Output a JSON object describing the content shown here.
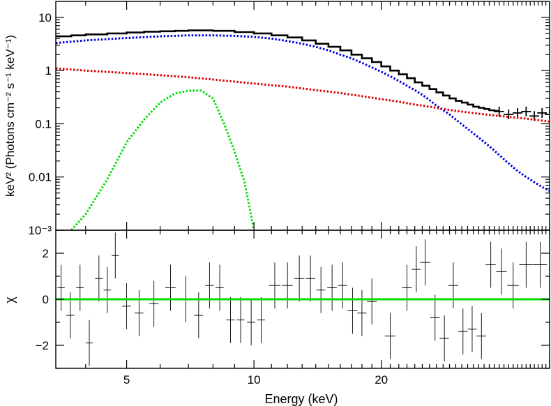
{
  "chart_data": [
    {
      "type": "line",
      "panel": "spectrum",
      "ylabel": "keV² (Photons cm⁻² s⁻¹ keV⁻¹)",
      "x_scale": "log",
      "y_scale": "log",
      "xlim": [
        3.4,
        50
      ],
      "ylim": [
        0.001,
        20
      ],
      "ytick_labels": [
        "10",
        "1",
        "0.1",
        "0.01",
        "10⁻³"
      ],
      "ytick_values": [
        10,
        1,
        0.1,
        0.01,
        0.001
      ],
      "colors": {
        "data": "#000000",
        "total": "#000000",
        "component_blue": "#0000dd",
        "component_red": "#dd0000",
        "component_green": "#00dd00"
      },
      "series": [
        {
          "style": "data-crosses",
          "color": "#000000",
          "x": [
            38,
            40,
            42,
            44,
            46,
            48,
            50
          ],
          "y": [
            0.17,
            0.15,
            0.16,
            0.17,
            0.14,
            0.16,
            0.15
          ]
        },
        {
          "style": "step",
          "color": "#000000",
          "x": [
            3.4,
            3.7,
            4.0,
            4.5,
            5.0,
            5.5,
            6.0,
            6.5,
            7.0,
            7.5,
            8.0,
            9.0,
            10,
            11,
            12,
            13,
            14,
            15,
            16,
            17,
            18,
            19,
            20,
            21,
            22,
            23,
            24,
            25,
            26,
            27,
            28,
            29,
            30,
            31,
            32,
            33,
            34,
            35,
            36,
            37,
            38
          ],
          "y": [
            4.4,
            4.6,
            4.8,
            5.0,
            5.2,
            5.4,
            5.5,
            5.6,
            5.7,
            5.7,
            5.6,
            5.3,
            5.0,
            4.6,
            4.2,
            3.7,
            3.2,
            2.8,
            2.4,
            2.0,
            1.7,
            1.45,
            1.2,
            1.0,
            0.85,
            0.72,
            0.6,
            0.52,
            0.45,
            0.39,
            0.34,
            0.3,
            0.27,
            0.25,
            0.23,
            0.21,
            0.2,
            0.19,
            0.18,
            0.175,
            0.17
          ]
        },
        {
          "style": "dotted",
          "color": "#0000dd",
          "x": [
            3.4,
            4.0,
            5.0,
            6.0,
            7.0,
            8.0,
            9.0,
            10,
            11,
            12,
            13,
            14,
            15,
            16,
            17,
            18,
            19,
            20,
            21,
            22,
            23,
            24,
            25,
            26,
            27,
            28,
            29,
            30,
            32,
            34,
            36,
            38,
            40,
            42,
            44,
            46,
            48,
            50
          ],
          "y": [
            3.3,
            3.7,
            4.1,
            4.4,
            4.6,
            4.6,
            4.5,
            4.3,
            4.0,
            3.6,
            3.2,
            2.8,
            2.4,
            2.0,
            1.7,
            1.4,
            1.15,
            0.95,
            0.78,
            0.64,
            0.52,
            0.43,
            0.35,
            0.28,
            0.22,
            0.18,
            0.15,
            0.12,
            0.08,
            0.055,
            0.038,
            0.026,
            0.018,
            0.013,
            0.01,
            0.008,
            0.0065,
            0.0055
          ]
        },
        {
          "style": "dotted",
          "color": "#dd0000",
          "x": [
            3.4,
            4.0,
            5.0,
            6.0,
            7.0,
            8.0,
            9.0,
            10,
            12,
            14,
            16,
            18,
            20,
            22,
            24,
            26,
            28,
            30,
            34,
            38,
            42,
            46,
            50
          ],
          "y": [
            1.1,
            1.0,
            0.9,
            0.82,
            0.75,
            0.68,
            0.62,
            0.57,
            0.5,
            0.43,
            0.38,
            0.33,
            0.29,
            0.26,
            0.23,
            0.21,
            0.19,
            0.175,
            0.155,
            0.14,
            0.13,
            0.12,
            0.11
          ]
        },
        {
          "style": "dotted",
          "color": "#00dd00",
          "x": [
            3.7,
            4.0,
            4.5,
            5.0,
            5.5,
            6.0,
            6.5,
            7.0,
            7.5,
            8.0,
            8.5,
            9.0,
            9.5,
            10
          ],
          "y": [
            0.001,
            0.002,
            0.009,
            0.045,
            0.12,
            0.25,
            0.37,
            0.42,
            0.42,
            0.3,
            0.1,
            0.03,
            0.008,
            0.001
          ]
        }
      ]
    },
    {
      "type": "scatter",
      "panel": "residuals",
      "xlabel": "Energy (keV)",
      "ylabel": "χ",
      "x_scale": "log",
      "xlim": [
        3.4,
        50
      ],
      "ylim": [
        -3,
        3
      ],
      "xtick_labels": [
        "5",
        "10",
        "20"
      ],
      "xtick_values": [
        5,
        10,
        20
      ],
      "ytick_labels": [
        "2",
        "0",
        "−2"
      ],
      "ytick_values": [
        2,
        0,
        -2
      ],
      "zero_line_color": "#00dd00",
      "points": [
        {
          "x": 3.5,
          "y": 0.5,
          "xerr": 0.07,
          "yerr": 1.0
        },
        {
          "x": 3.68,
          "y": -0.7,
          "xerr": 0.08,
          "yerr": 1.0
        },
        {
          "x": 3.88,
          "y": 0.5,
          "xerr": 0.08,
          "yerr": 1.0
        },
        {
          "x": 4.08,
          "y": -1.9,
          "xerr": 0.08,
          "yerr": 1.0
        },
        {
          "x": 4.3,
          "y": 0.9,
          "xerr": 0.09,
          "yerr": 1.0
        },
        {
          "x": 4.5,
          "y": 0.4,
          "xerr": 0.09,
          "yerr": 1.0
        },
        {
          "x": 4.7,
          "y": 1.9,
          "xerr": 0.09,
          "yerr": 1.0
        },
        {
          "x": 5.0,
          "y": -0.3,
          "xerr": 0.12,
          "yerr": 1.0
        },
        {
          "x": 5.35,
          "y": -0.6,
          "xerr": 0.13,
          "yerr": 1.0
        },
        {
          "x": 5.8,
          "y": -0.2,
          "xerr": 0.15,
          "yerr": 1.0
        },
        {
          "x": 6.35,
          "y": 0.5,
          "xerr": 0.18,
          "yerr": 1.0
        },
        {
          "x": 6.9,
          "y": 0.0,
          "xerr": 0.18,
          "yerr": 1.0
        },
        {
          "x": 7.4,
          "y": -0.7,
          "xerr": 0.18,
          "yerr": 1.0
        },
        {
          "x": 7.85,
          "y": 0.6,
          "xerr": 0.18,
          "yerr": 1.0
        },
        {
          "x": 8.3,
          "y": 0.5,
          "xerr": 0.18,
          "yerr": 1.0
        },
        {
          "x": 8.8,
          "y": -0.9,
          "xerr": 0.2,
          "yerr": 1.0
        },
        {
          "x": 9.3,
          "y": -0.9,
          "xerr": 0.2,
          "yerr": 1.0
        },
        {
          "x": 9.85,
          "y": -1.0,
          "xerr": 0.22,
          "yerr": 1.0
        },
        {
          "x": 10.4,
          "y": -0.9,
          "xerr": 0.22,
          "yerr": 1.0
        },
        {
          "x": 11.2,
          "y": 0.6,
          "xerr": 0.35,
          "yerr": 1.0
        },
        {
          "x": 12.0,
          "y": 0.6,
          "xerr": 0.35,
          "yerr": 1.0
        },
        {
          "x": 12.8,
          "y": 0.9,
          "xerr": 0.35,
          "yerr": 1.0
        },
        {
          "x": 13.6,
          "y": 0.9,
          "xerr": 0.35,
          "yerr": 1.0
        },
        {
          "x": 14.4,
          "y": 0.4,
          "xerr": 0.35,
          "yerr": 1.0
        },
        {
          "x": 15.3,
          "y": 0.5,
          "xerr": 0.4,
          "yerr": 1.0
        },
        {
          "x": 16.2,
          "y": 0.6,
          "xerr": 0.4,
          "yerr": 1.0
        },
        {
          "x": 17.1,
          "y": -0.5,
          "xerr": 0.45,
          "yerr": 1.0
        },
        {
          "x": 18.0,
          "y": -0.6,
          "xerr": 0.45,
          "yerr": 1.0
        },
        {
          "x": 19.0,
          "y": -0.1,
          "xerr": 0.5,
          "yerr": 1.0
        },
        {
          "x": 21.0,
          "y": -1.6,
          "xerr": 0.6,
          "yerr": 1.0
        },
        {
          "x": 23.0,
          "y": 0.5,
          "xerr": 0.6,
          "yerr": 1.0
        },
        {
          "x": 24.2,
          "y": 1.3,
          "xerr": 0.6,
          "yerr": 1.0
        },
        {
          "x": 25.4,
          "y": 1.6,
          "xerr": 0.7,
          "yerr": 1.0
        },
        {
          "x": 26.8,
          "y": -0.8,
          "xerr": 0.7,
          "yerr": 1.0
        },
        {
          "x": 28.2,
          "y": -1.7,
          "xerr": 0.7,
          "yerr": 1.0
        },
        {
          "x": 29.6,
          "y": 0.6,
          "xerr": 0.8,
          "yerr": 1.0
        },
        {
          "x": 31.2,
          "y": -1.4,
          "xerr": 0.8,
          "yerr": 1.0
        },
        {
          "x": 32.8,
          "y": -1.3,
          "xerr": 0.8,
          "yerr": 1.0
        },
        {
          "x": 34.5,
          "y": -1.6,
          "xerr": 0.9,
          "yerr": 1.0
        },
        {
          "x": 36.3,
          "y": 1.5,
          "xerr": 1.0,
          "yerr": 1.0
        },
        {
          "x": 38.5,
          "y": 1.2,
          "xerr": 1.1,
          "yerr": 1.0
        },
        {
          "x": 41.0,
          "y": 0.6,
          "xerr": 1.3,
          "yerr": 1.0
        },
        {
          "x": 44.0,
          "y": 1.5,
          "xerr": 1.6,
          "yerr": 1.0
        },
        {
          "x": 47.5,
          "y": 1.5,
          "xerr": 1.8,
          "yerr": 1.0
        }
      ]
    }
  ]
}
